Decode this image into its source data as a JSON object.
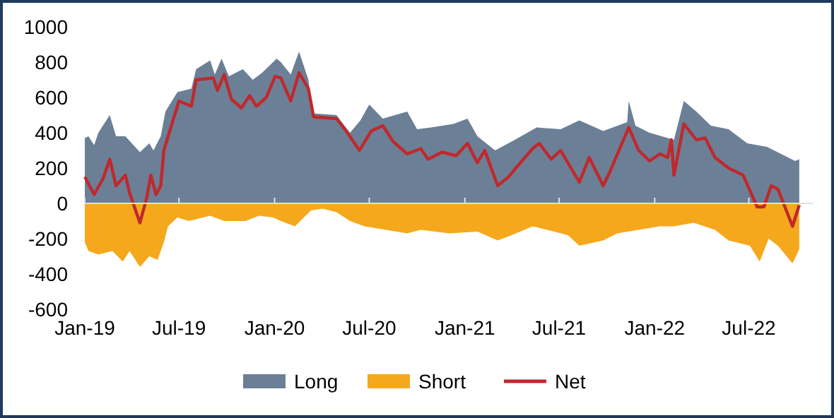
{
  "chart_data": {
    "type": "area",
    "legend": "bottom",
    "xlim": [
      "2019-01-01",
      "2022-11-01"
    ],
    "xticks": [
      {
        "value": "2019-01-01",
        "label": "Jan-19"
      },
      {
        "value": "2019-07-01",
        "label": "Jul-19"
      },
      {
        "value": "2020-01-01",
        "label": "Jan-20"
      },
      {
        "value": "2020-07-01",
        "label": "Jul-20"
      },
      {
        "value": "2021-01-01",
        "label": "Jan-21"
      },
      {
        "value": "2021-07-01",
        "label": "Jul-21"
      },
      {
        "value": "2022-01-01",
        "label": "Jan-22"
      },
      {
        "value": "2022-07-01",
        "label": "Jul-22"
      }
    ],
    "ylim": [
      -600,
      1000
    ],
    "yticks": [
      -600,
      -400,
      -200,
      0,
      200,
      400,
      600,
      800,
      1000
    ],
    "series": [
      {
        "name": "Long",
        "color": "#6b8096",
        "x": [
          "2019-01-01",
          "2019-01-08",
          "2019-01-19",
          "2019-01-27",
          "2019-02-18",
          "2019-03-02",
          "2019-03-20",
          "2019-04-17",
          "2019-05-05",
          "2019-05-13",
          "2019-05-27",
          "2019-06-05",
          "2019-06-28",
          "2019-07-25",
          "2019-08-03",
          "2019-08-30",
          "2019-09-08",
          "2019-09-21",
          "2019-10-05",
          "2019-11-01",
          "2019-11-20",
          "2019-12-08",
          "2020-01-05",
          "2020-01-13",
          "2020-02-01",
          "2020-02-17",
          "2020-03-06",
          "2020-03-14",
          "2020-04-29",
          "2020-05-25",
          "2020-06-14",
          "2020-07-01",
          "2020-07-27",
          "2020-09-12",
          "2020-10-01",
          "2020-10-28",
          "2020-12-10",
          "2021-01-06",
          "2021-01-25",
          "2021-02-28",
          "2021-04-07",
          "2021-05-19",
          "2021-07-04",
          "2021-08-09",
          "2021-09-24",
          "2021-11-09",
          "2021-11-12",
          "2021-11-25",
          "2021-12-22",
          "2022-02-07",
          "2022-02-26",
          "2022-03-22",
          "2022-04-19",
          "2022-05-23",
          "2022-06-28",
          "2022-08-05",
          "2022-09-28",
          "2022-10-06"
        ],
        "values": [
          370,
          380,
          330,
          400,
          500,
          380,
          380,
          290,
          340,
          300,
          380,
          520,
          630,
          650,
          760,
          810,
          730,
          820,
          720,
          760,
          700,
          740,
          820,
          800,
          730,
          860,
          700,
          510,
          500,
          400,
          470,
          560,
          480,
          520,
          420,
          430,
          450,
          480,
          380,
          300,
          360,
          430,
          420,
          470,
          410,
          460,
          580,
          440,
          400,
          360,
          580,
          520,
          440,
          420,
          340,
          320,
          240,
          250
        ]
      },
      {
        "name": "Short",
        "color": "#f5a81c",
        "x": [
          "2019-01-01",
          "2019-01-08",
          "2019-01-27",
          "2019-02-23",
          "2019-03-15",
          "2019-03-28",
          "2019-04-17",
          "2019-05-05",
          "2019-05-21",
          "2019-06-02",
          "2019-06-10",
          "2019-06-28",
          "2019-07-20",
          "2019-08-30",
          "2019-09-26",
          "2019-11-06",
          "2019-12-02",
          "2019-12-29",
          "2020-01-13",
          "2020-02-09",
          "2020-03-11",
          "2020-04-02",
          "2020-04-29",
          "2020-05-25",
          "2020-06-22",
          "2020-08-02",
          "2020-09-12",
          "2020-10-08",
          "2020-12-02",
          "2021-01-25",
          "2021-03-05",
          "2021-04-01",
          "2021-05-11",
          "2021-06-08",
          "2021-07-18",
          "2021-08-09",
          "2021-09-24",
          "2021-10-21",
          "2021-12-01",
          "2022-01-11",
          "2022-02-07",
          "2022-03-17",
          "2022-04-27",
          "2022-05-23",
          "2022-07-03",
          "2022-07-22",
          "2022-08-08",
          "2022-08-26",
          "2022-09-23",
          "2022-10-06"
        ],
        "values": [
          -220,
          -270,
          -290,
          -270,
          -330,
          -270,
          -360,
          -300,
          -320,
          -220,
          -130,
          -80,
          -100,
          -70,
          -100,
          -100,
          -70,
          -80,
          -100,
          -130,
          -40,
          -30,
          -50,
          -100,
          -130,
          -150,
          -170,
          -150,
          -170,
          -160,
          -210,
          -180,
          -130,
          -150,
          -180,
          -240,
          -210,
          -170,
          -150,
          -130,
          -130,
          -110,
          -150,
          -210,
          -240,
          -330,
          -200,
          -240,
          -340,
          -260
        ]
      },
      {
        "name": "Net",
        "type": "line",
        "color": "#c0282d",
        "x": [
          "2019-01-01",
          "2019-01-19",
          "2019-02-05",
          "2019-02-18",
          "2019-03-02",
          "2019-03-20",
          "2019-03-28",
          "2019-04-17",
          "2019-04-30",
          "2019-05-08",
          "2019-05-18",
          "2019-05-27",
          "2019-06-02",
          "2019-07-01",
          "2019-07-25",
          "2019-08-03",
          "2019-09-05",
          "2019-09-13",
          "2019-09-26",
          "2019-10-10",
          "2019-10-29",
          "2019-11-14",
          "2019-11-27",
          "2019-12-16",
          "2020-01-02",
          "2020-01-13",
          "2020-02-01",
          "2020-02-17",
          "2020-03-06",
          "2020-03-16",
          "2020-04-29",
          "2020-05-20",
          "2020-06-12",
          "2020-07-05",
          "2020-07-27",
          "2020-08-16",
          "2020-09-12",
          "2020-10-08",
          "2020-10-22",
          "2020-11-18",
          "2020-12-15",
          "2021-01-06",
          "2021-01-25",
          "2021-02-08",
          "2021-03-05",
          "2021-03-26",
          "2021-04-09",
          "2021-05-11",
          "2021-05-24",
          "2021-06-16",
          "2021-07-04",
          "2021-08-09",
          "2021-08-28",
          "2021-09-24",
          "2021-10-07",
          "2021-11-12",
          "2021-12-01",
          "2021-12-22",
          "2022-01-11",
          "2022-01-26",
          "2022-02-02",
          "2022-02-07",
          "2022-02-26",
          "2022-03-22",
          "2022-04-08",
          "2022-04-27",
          "2022-05-23",
          "2022-06-20",
          "2022-07-17",
          "2022-07-30",
          "2022-08-13",
          "2022-08-26",
          "2022-09-23",
          "2022-10-06"
        ],
        "values": [
          150,
          50,
          140,
          250,
          100,
          160,
          60,
          -110,
          30,
          160,
          50,
          100,
          300,
          580,
          550,
          700,
          710,
          640,
          730,
          590,
          540,
          610,
          550,
          600,
          720,
          710,
          580,
          740,
          650,
          490,
          480,
          400,
          300,
          410,
          440,
          350,
          280,
          310,
          250,
          290,
          270,
          340,
          230,
          300,
          100,
          150,
          200,
          310,
          340,
          250,
          300,
          120,
          260,
          100,
          180,
          430,
          300,
          240,
          280,
          260,
          360,
          160,
          450,
          360,
          370,
          260,
          200,
          160,
          -20,
          -20,
          100,
          80,
          -130,
          -10
        ]
      }
    ]
  }
}
